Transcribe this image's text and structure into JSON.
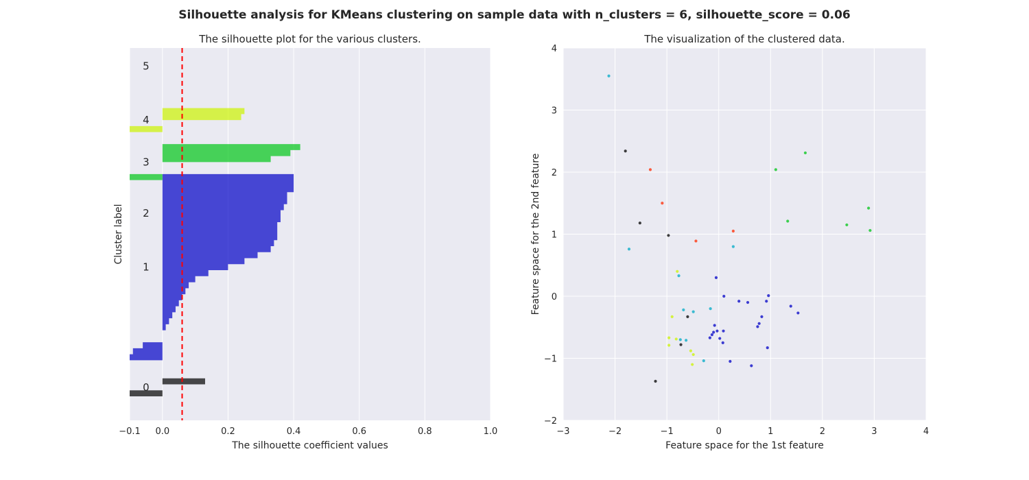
{
  "figure": {
    "suptitle": "Silhouette analysis for KMeans clustering on sample data with n_clusters = 6, silhouette_score = 0.06"
  },
  "style": {
    "axes_bg": "#eaeaf2",
    "grid_color": "#ffffff",
    "avg_line_color": "#ff0000",
    "cluster_colors": [
      "#000000",
      "#0000c6",
      "#00a9c6",
      "#00c617",
      "#ccf400",
      "#ff2a00"
    ]
  },
  "chart_data": [
    {
      "type": "silhouette",
      "title": "The silhouette plot for the various clusters.",
      "xlabel": "The silhouette coefficient values",
      "ylabel": "Cluster label",
      "xlim": [
        -0.1,
        1.0
      ],
      "ylim": [
        0,
        62
      ],
      "xticks": [
        -0.1,
        0.0,
        0.2,
        0.4,
        0.6,
        0.8,
        1.0
      ],
      "xtick_labels": [
        "−0.1",
        "0.0",
        "0.2",
        "0.4",
        "0.6",
        "0.8",
        "1.0"
      ],
      "grid": true,
      "silhouette_avg": 0.06,
      "clusters": [
        {
          "label": "0",
          "y_lower": 4,
          "values": [
            -0.1,
            0.0,
            0.13
          ]
        },
        {
          "label": "1",
          "y_lower": 10,
          "values": [
            -0.1,
            -0.09,
            -0.06,
            0.0,
            0.0,
            0.01,
            0.02,
            0.03,
            0.04,
            0.05,
            0.06,
            0.07,
            0.08,
            0.1,
            0.14,
            0.2,
            0.25,
            0.29,
            0.33,
            0.34,
            0.35,
            0.35,
            0.35,
            0.36,
            0.36,
            0.37,
            0.38,
            0.38,
            0.4,
            0.4,
            0.4
          ]
        },
        {
          "label": "2",
          "y_lower": 31,
          "values": [
            0.0,
            0.0,
            0.0,
            0.0,
            0.0,
            0.0,
            0.0
          ]
        },
        {
          "label": "3",
          "y_lower": 40,
          "values": [
            -0.1,
            0.0,
            0.0,
            0.33,
            0.39,
            0.42
          ]
        },
        {
          "label": "4",
          "y_lower": 48,
          "values": [
            -0.1,
            0.0,
            0.24,
            0.25
          ]
        },
        {
          "label": "5",
          "y_lower": 57,
          "values": [
            0.0,
            0.0,
            0.0,
            0.0
          ]
        }
      ]
    },
    {
      "type": "scatter",
      "title": "The visualization of the clustered data.",
      "xlabel": "Feature space for the 1st feature",
      "ylabel": "Feature space for the 2nd feature",
      "xlim": [
        -3,
        4
      ],
      "ylim": [
        -2,
        4
      ],
      "xticks": [
        -3,
        -2,
        -1,
        0,
        1,
        2,
        3,
        4
      ],
      "xtick_labels": [
        "−3",
        "−2",
        "−1",
        "0",
        "1",
        "2",
        "3",
        "4"
      ],
      "yticks": [
        -2,
        -1,
        0,
        1,
        2,
        3,
        4
      ],
      "ytick_labels": [
        "−2",
        "−1",
        "0",
        "1",
        "2",
        "3",
        "4"
      ],
      "grid": true,
      "clusters": [
        {
          "label": "0",
          "points": [
            [
              -1.8,
              2.34
            ],
            [
              -1.52,
              1.18
            ],
            [
              -0.97,
              0.98
            ],
            [
              -0.6,
              -0.33
            ],
            [
              -0.73,
              -0.78
            ],
            [
              -1.22,
              -1.37
            ]
          ]
        },
        {
          "label": "1",
          "points": [
            [
              -0.05,
              0.3
            ],
            [
              0.1,
              0.0
            ],
            [
              0.39,
              -0.08
            ],
            [
              0.56,
              -0.1
            ],
            [
              0.96,
              0.01
            ],
            [
              0.92,
              -0.08
            ],
            [
              0.83,
              -0.33
            ],
            [
              0.78,
              -0.44
            ],
            [
              0.75,
              -0.49
            ],
            [
              1.39,
              -0.16
            ],
            [
              1.53,
              -0.27
            ],
            [
              -0.08,
              -0.47
            ],
            [
              -0.03,
              -0.56
            ],
            [
              -0.1,
              -0.58
            ],
            [
              -0.13,
              -0.62
            ],
            [
              -0.17,
              -0.67
            ],
            [
              0.02,
              -0.68
            ],
            [
              0.09,
              -0.56
            ],
            [
              0.08,
              -0.75
            ],
            [
              0.94,
              -0.83
            ],
            [
              0.22,
              -1.05
            ],
            [
              0.63,
              -1.12
            ]
          ]
        },
        {
          "label": "2",
          "points": [
            [
              -2.12,
              3.55
            ],
            [
              -1.73,
              0.76
            ],
            [
              -0.77,
              0.33
            ],
            [
              0.28,
              0.8
            ],
            [
              -0.68,
              -0.22
            ],
            [
              -0.49,
              -0.25
            ],
            [
              -0.16,
              -0.2
            ],
            [
              -0.74,
              -0.7
            ],
            [
              -0.63,
              -0.71
            ],
            [
              -0.29,
              -1.04
            ]
          ]
        },
        {
          "label": "3",
          "points": [
            [
              1.67,
              2.31
            ],
            [
              1.1,
              2.04
            ],
            [
              1.33,
              1.21
            ],
            [
              2.89,
              1.42
            ],
            [
              2.47,
              1.15
            ],
            [
              2.92,
              1.06
            ]
          ]
        },
        {
          "label": "4",
          "points": [
            [
              -0.8,
              0.4
            ],
            [
              -0.9,
              -0.33
            ],
            [
              -0.96,
              -0.67
            ],
            [
              -0.96,
              -0.79
            ],
            [
              -0.82,
              -0.69
            ],
            [
              -0.54,
              -0.88
            ],
            [
              -0.49,
              -0.94
            ],
            [
              -0.51,
              -1.1
            ]
          ]
        },
        {
          "label": "5",
          "points": [
            [
              -1.32,
              2.04
            ],
            [
              -1.09,
              1.5
            ],
            [
              0.28,
              1.05
            ],
            [
              -0.44,
              0.89
            ]
          ]
        }
      ]
    }
  ]
}
